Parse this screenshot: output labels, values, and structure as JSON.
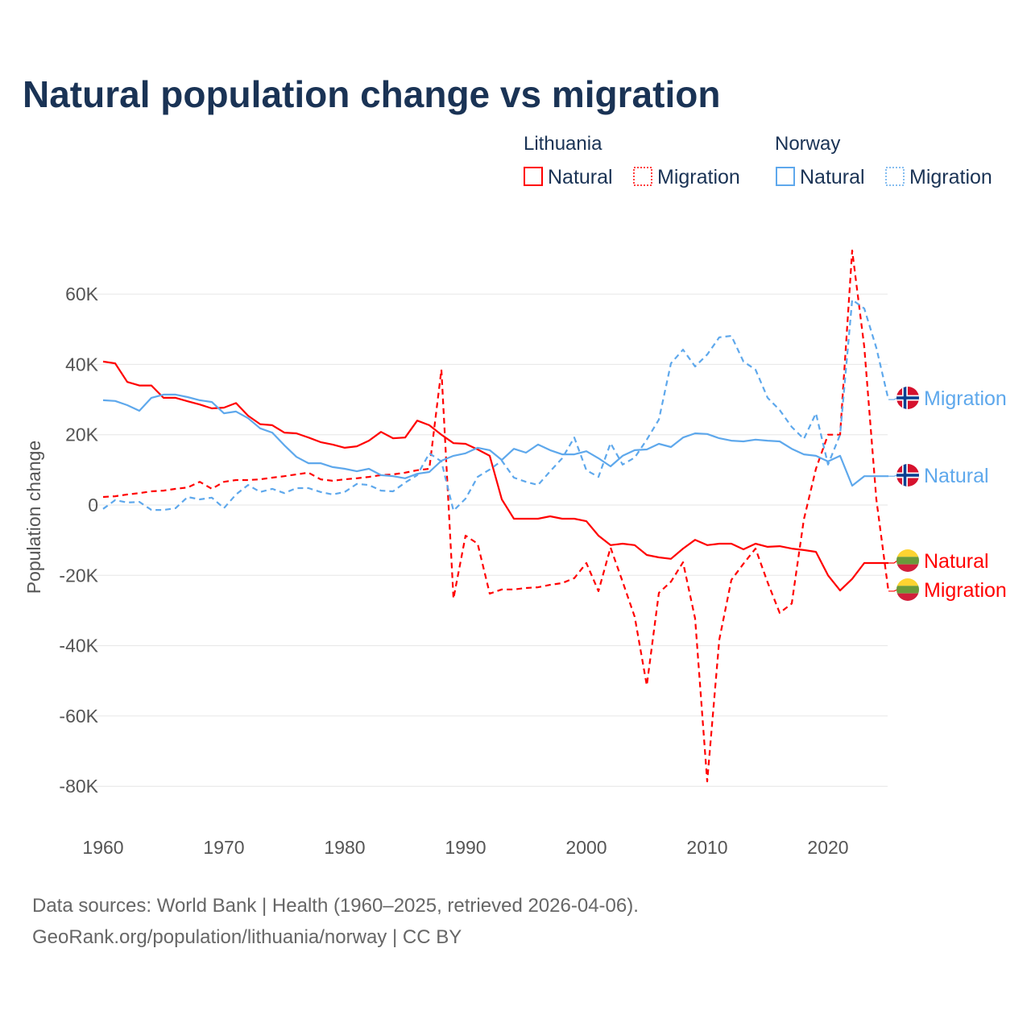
{
  "chart_data": {
    "type": "line",
    "title": "Natural population change vs migration",
    "xlabel": "",
    "ylabel": "Population change",
    "xlim": [
      1960,
      2025
    ],
    "ylim": [
      -90000,
      75000
    ],
    "x_ticks": [
      "1960",
      "1970",
      "1980",
      "1990",
      "2000",
      "2010",
      "2020"
    ],
    "y_ticks": [
      {
        "value": 60000,
        "label": "60K"
      },
      {
        "value": 40000,
        "label": "40K"
      },
      {
        "value": 20000,
        "label": "20K"
      },
      {
        "value": 0,
        "label": "0"
      },
      {
        "value": -20000,
        "label": "-20K"
      },
      {
        "value": -40000,
        "label": "-40K"
      },
      {
        "value": -60000,
        "label": "-60K"
      },
      {
        "value": -80000,
        "label": "-80K"
      }
    ],
    "grid": true,
    "legend_placement": "top-right",
    "legend_groups": [
      {
        "country": "Lithuania",
        "items": [
          "Natural",
          "Migration"
        ]
      },
      {
        "country": "Norway",
        "items": [
          "Natural",
          "Migration"
        ]
      }
    ],
    "x_start": 1960,
    "series": [
      {
        "name": "Lithuania Natural",
        "country": "Lithuania",
        "end_label": "Natural",
        "color": "#ff0000",
        "dash": false,
        "values": [
          40800,
          40300,
          35000,
          34000,
          34000,
          30500,
          30500,
          29500,
          28600,
          27500,
          27700,
          29000,
          25400,
          23000,
          22700,
          20600,
          20400,
          19200,
          17900,
          17200,
          16300,
          16700,
          18300,
          20800,
          19000,
          19200,
          24000,
          22700,
          20000,
          17600,
          17400,
          15800,
          14000,
          1600,
          -3900,
          -3900,
          -3900,
          -3200,
          -3900,
          -3900,
          -4600,
          -8700,
          -11400,
          -11000,
          -11400,
          -14200,
          -14900,
          -15300,
          -12400,
          -9900,
          -11400,
          -11000,
          -11000,
          -12600,
          -11000,
          -11900,
          -11700,
          -12400,
          -12800,
          -13300,
          -20000,
          -24300,
          -21000,
          -16500,
          -16500,
          -16500
        ]
      },
      {
        "name": "Lithuania Migration",
        "country": "Lithuania",
        "end_label": "Migration",
        "color": "#ff0000",
        "dash": true,
        "values": [
          2300,
          2500,
          3000,
          3400,
          3900,
          4100,
          4600,
          5000,
          6600,
          4600,
          6600,
          7100,
          7100,
          7300,
          7800,
          8200,
          8700,
          9200,
          7300,
          6900,
          7300,
          7600,
          8000,
          8500,
          8700,
          9200,
          9900,
          10300,
          38500,
          -26600,
          -8700,
          -11000,
          -25200,
          -24000,
          -24000,
          -23600,
          -23400,
          -22700,
          -22200,
          -20800,
          -16500,
          -24500,
          -12100,
          -21800,
          -31800,
          -51300,
          -25000,
          -21800,
          -16300,
          -32300,
          -78600,
          -38300,
          -21300,
          -16700,
          -12400,
          -22000,
          -30700,
          -28000,
          -4100,
          10300,
          20000,
          20000,
          72400,
          45000,
          1600,
          -24500
        ]
      },
      {
        "name": "Norway Natural",
        "country": "Norway",
        "end_label": "Natural",
        "color": "#5ea8ec",
        "dash": false,
        "values": [
          29800,
          29600,
          28400,
          26800,
          30500,
          31400,
          31400,
          30700,
          29800,
          29300,
          26100,
          26600,
          24700,
          21800,
          20600,
          17000,
          13700,
          11900,
          11900,
          10800,
          10300,
          9600,
          10300,
          8500,
          8200,
          7600,
          8900,
          9400,
          12600,
          14000,
          14700,
          16300,
          15600,
          12800,
          16000,
          14900,
          17200,
          15600,
          14400,
          14400,
          15300,
          13300,
          11000,
          14000,
          15600,
          15800,
          17400,
          16500,
          19200,
          20400,
          20200,
          19000,
          18300,
          18100,
          18600,
          18300,
          18100,
          16000,
          14400,
          14000,
          12400,
          14000,
          5500,
          8200,
          8200,
          8200
        ]
      },
      {
        "name": "Norway Migration",
        "country": "Norway",
        "end_label": "Migration",
        "color": "#5ea8ec",
        "dash": true,
        "values": [
          -1100,
          1400,
          700,
          900,
          -1400,
          -1400,
          -900,
          2300,
          1600,
          2100,
          -900,
          3000,
          5700,
          3700,
          4600,
          3400,
          4800,
          4800,
          3700,
          3000,
          3700,
          6000,
          5700,
          4100,
          3900,
          6400,
          8500,
          14700,
          12400,
          -1600,
          1800,
          8000,
          10100,
          12600,
          7800,
          6600,
          5700,
          9600,
          13300,
          19200,
          9900,
          8000,
          17600,
          11500,
          13500,
          18600,
          24300,
          40300,
          44200,
          39400,
          42800,
          47700,
          48100,
          40800,
          38500,
          30500,
          27000,
          22200,
          18800,
          26100,
          11500,
          20000,
          58400,
          55900,
          44700,
          30000
        ]
      }
    ]
  },
  "footer": {
    "line1": "Data sources: World Bank | Health (1960–2025, retrieved 2026-04-06).",
    "line2": "GeoRank.org/population/lithuania/norway | CC BY"
  }
}
